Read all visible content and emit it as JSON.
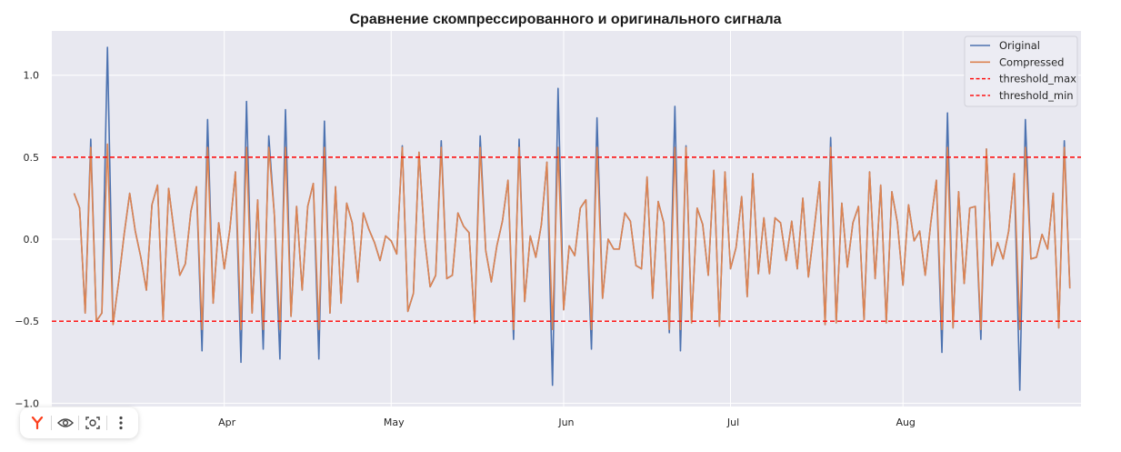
{
  "chart_data": {
    "type": "line",
    "title": "Сравнение скомпрессированного и оригинального сигнала",
    "xlabel": "",
    "ylabel": "",
    "ylim": [
      -1.02,
      1.27
    ],
    "xlim": [
      -4,
      181
    ],
    "x_ticks": [
      {
        "label": "Apr",
        "index": 27
      },
      {
        "label": "May",
        "index": 57
      },
      {
        "label": "Jun",
        "index": 88
      },
      {
        "label": "Jul",
        "index": 118
      },
      {
        "label": "Aug",
        "index": 149
      }
    ],
    "y_ticks": [
      {
        "label": "1.0",
        "value": 1.0
      },
      {
        "label": "0.5",
        "value": 0.5
      },
      {
        "label": "0.0",
        "value": 0.0
      },
      {
        "label": "−0.5",
        "value": -0.5
      },
      {
        "label": "−1.0",
        "value": -1.0
      }
    ],
    "grid": true,
    "legend_position": "top-right",
    "series": [
      {
        "name": "Original",
        "color": "#4c72b0",
        "values": [
          0.28,
          0.19,
          -0.45,
          0.61,
          -0.5,
          -0.45,
          1.17,
          -0.52,
          -0.26,
          0.03,
          0.28,
          0.05,
          -0.11,
          -0.31,
          0.21,
          0.33,
          -0.49,
          0.31,
          0.04,
          -0.22,
          -0.15,
          0.17,
          0.32,
          -0.68,
          0.73,
          -0.39,
          0.1,
          -0.18,
          0.06,
          0.41,
          -0.75,
          0.84,
          -0.45,
          0.24,
          -0.67,
          0.63,
          0.15,
          -0.73,
          0.79,
          -0.47,
          0.2,
          -0.31,
          0.2,
          0.34,
          -0.73,
          0.72,
          -0.45,
          0.32,
          -0.39,
          0.22,
          0.1,
          -0.26,
          0.16,
          0.06,
          -0.02,
          -0.13,
          0.02,
          -0.01,
          -0.09,
          0.57,
          -0.44,
          -0.33,
          0.53,
          0.01,
          -0.29,
          -0.22,
          0.6,
          -0.24,
          -0.22,
          0.16,
          0.08,
          0.04,
          -0.51,
          0.63,
          -0.07,
          -0.26,
          -0.04,
          0.11,
          0.36,
          -0.61,
          0.61,
          -0.38,
          0.02,
          -0.11,
          0.09,
          0.47,
          -0.89,
          0.92,
          -0.43,
          -0.04,
          -0.1,
          0.19,
          0.24,
          -0.67,
          0.74,
          -0.36,
          0.0,
          -0.06,
          -0.06,
          0.16,
          0.11,
          -0.16,
          -0.18,
          0.38,
          -0.36,
          0.23,
          0.1,
          -0.57,
          0.81,
          -0.68,
          0.57,
          -0.51,
          0.19,
          0.09,
          -0.22,
          0.42,
          -0.53,
          0.41,
          -0.18,
          -0.05,
          0.26,
          -0.35,
          0.4,
          -0.21,
          0.13,
          -0.21,
          0.13,
          0.1,
          -0.13,
          0.11,
          -0.18,
          0.25,
          -0.23,
          0.05,
          0.35,
          -0.52,
          0.62,
          -0.51,
          0.22,
          -0.17,
          0.1,
          0.2,
          -0.49,
          0.41,
          -0.24,
          0.33,
          -0.51,
          0.29,
          0.1,
          -0.28,
          0.21,
          -0.01,
          0.05,
          -0.22,
          0.1,
          0.36,
          -0.69,
          0.77,
          -0.54,
          0.29,
          -0.27,
          0.19,
          0.2,
          -0.61,
          0.55,
          -0.16,
          -0.02,
          -0.12,
          0.05,
          0.4,
          -0.92,
          0.73,
          -0.12,
          -0.11,
          0.03,
          -0.06,
          0.28,
          -0.54,
          0.6,
          -0.3
        ]
      },
      {
        "name": "Compressed",
        "color": "#dd8452",
        "values": [
          0.28,
          0.19,
          -0.45,
          0.56,
          -0.5,
          -0.45,
          0.58,
          -0.52,
          -0.26,
          0.03,
          0.28,
          0.05,
          -0.11,
          -0.31,
          0.21,
          0.33,
          -0.49,
          0.31,
          0.04,
          -0.22,
          -0.15,
          0.17,
          0.32,
          -0.55,
          0.56,
          -0.39,
          0.1,
          -0.18,
          0.06,
          0.41,
          -0.55,
          0.56,
          -0.45,
          0.24,
          -0.55,
          0.56,
          0.15,
          -0.55,
          0.56,
          -0.47,
          0.2,
          -0.31,
          0.2,
          0.34,
          -0.55,
          0.56,
          -0.45,
          0.32,
          -0.39,
          0.22,
          0.1,
          -0.26,
          0.16,
          0.06,
          -0.02,
          -0.13,
          0.02,
          -0.01,
          -0.09,
          0.56,
          -0.44,
          -0.33,
          0.53,
          0.01,
          -0.29,
          -0.22,
          0.56,
          -0.24,
          -0.22,
          0.16,
          0.08,
          0.04,
          -0.51,
          0.56,
          -0.07,
          -0.26,
          -0.04,
          0.11,
          0.36,
          -0.55,
          0.56,
          -0.38,
          0.02,
          -0.11,
          0.09,
          0.47,
          -0.55,
          0.56,
          -0.43,
          -0.04,
          -0.1,
          0.19,
          0.24,
          -0.55,
          0.56,
          -0.36,
          0.0,
          -0.06,
          -0.06,
          0.16,
          0.11,
          -0.16,
          -0.18,
          0.38,
          -0.36,
          0.23,
          0.1,
          -0.55,
          0.56,
          -0.55,
          0.56,
          -0.51,
          0.19,
          0.09,
          -0.22,
          0.42,
          -0.53,
          0.41,
          -0.18,
          -0.05,
          0.26,
          -0.35,
          0.4,
          -0.21,
          0.13,
          -0.21,
          0.13,
          0.1,
          -0.13,
          0.11,
          -0.18,
          0.25,
          -0.23,
          0.05,
          0.35,
          -0.52,
          0.56,
          -0.51,
          0.22,
          -0.17,
          0.1,
          0.2,
          -0.49,
          0.41,
          -0.24,
          0.33,
          -0.51,
          0.29,
          0.1,
          -0.28,
          0.21,
          -0.01,
          0.05,
          -0.22,
          0.1,
          0.36,
          -0.55,
          0.56,
          -0.54,
          0.29,
          -0.27,
          0.19,
          0.2,
          -0.55,
          0.55,
          -0.16,
          -0.02,
          -0.12,
          0.05,
          0.4,
          -0.55,
          0.56,
          -0.12,
          -0.11,
          0.03,
          -0.06,
          0.28,
          -0.54,
          0.56,
          -0.3
        ]
      }
    ],
    "thresholds": [
      {
        "name": "threshold_max",
        "value": 0.5,
        "color": "#ff0000",
        "style": "dashed"
      },
      {
        "name": "threshold_min",
        "value": -0.5,
        "color": "#ff0000",
        "style": "dashed"
      }
    ],
    "plot_background": "#e8e8f0",
    "grid_color": "#ffffff"
  },
  "toolbar": {
    "items": [
      {
        "icon": "yandex-logo-icon"
      },
      {
        "icon": "eye-icon"
      },
      {
        "icon": "screenshot-camera-icon"
      },
      {
        "icon": "more-vertical-icon"
      }
    ]
  }
}
